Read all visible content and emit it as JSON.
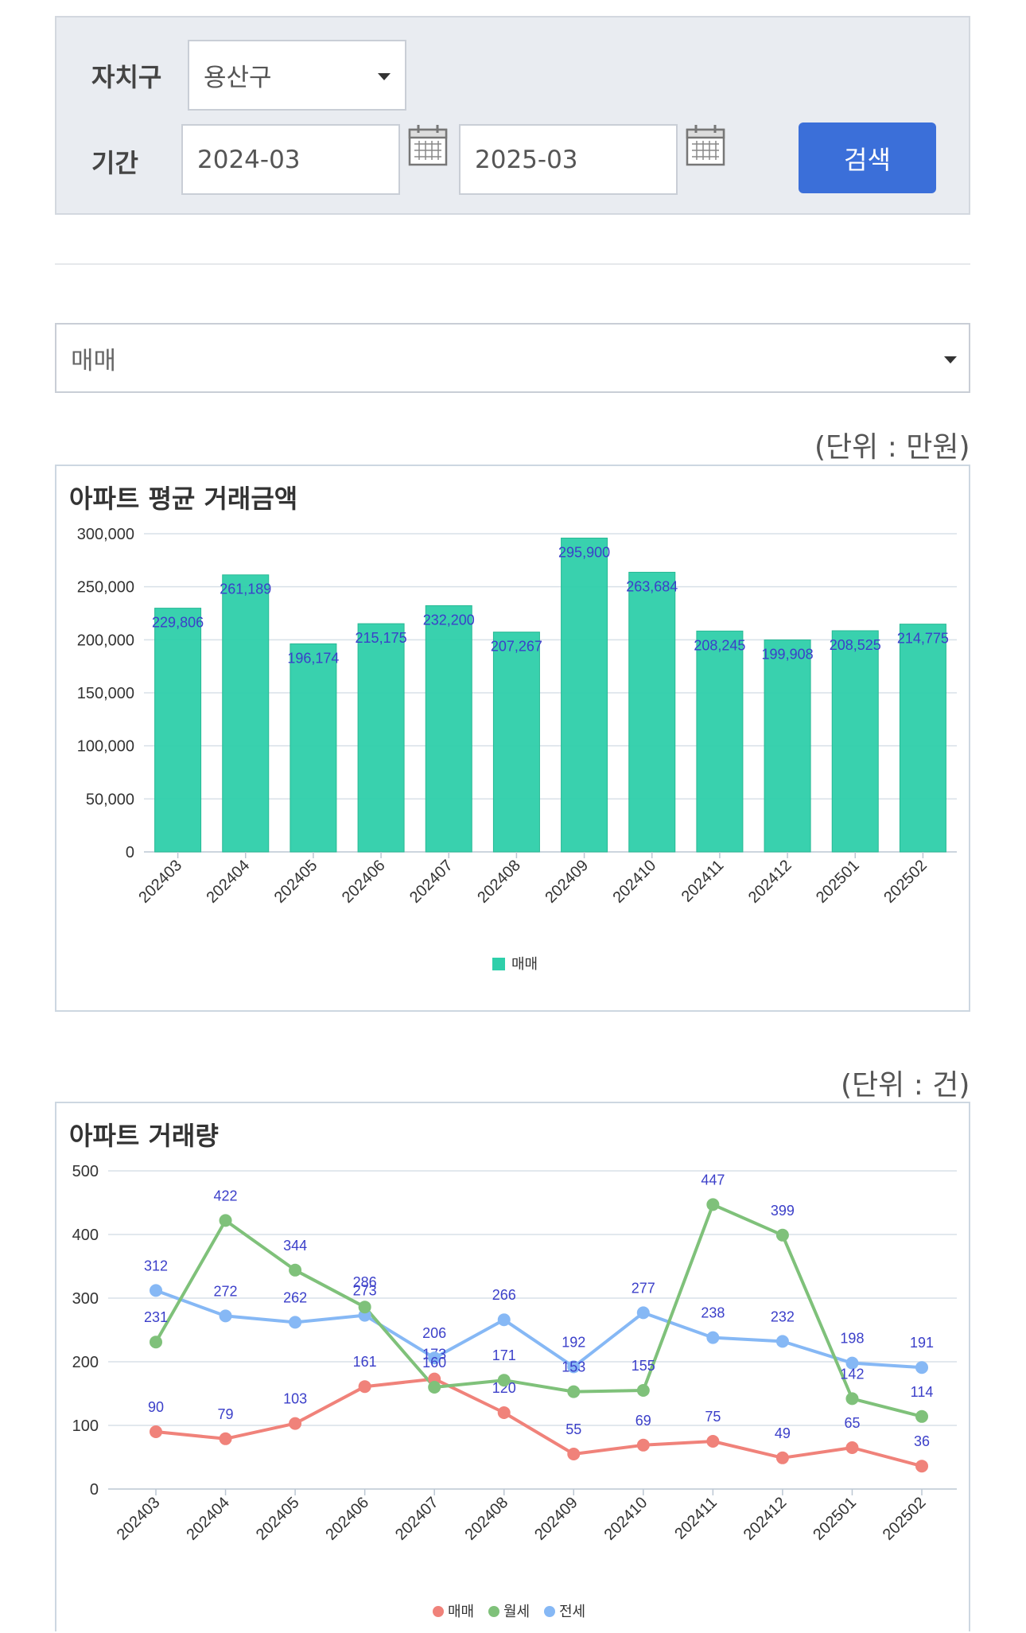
{
  "filter": {
    "district_label": "자치구",
    "district_value": "용산구",
    "period_label": "기간",
    "start_value": "2024-03",
    "end_value": "2025-03",
    "search_label": "검색"
  },
  "trade_type": {
    "selected": "매매"
  },
  "price_unit": "(단위 : 만원)",
  "volume_unit": "(단위 : 건)",
  "colors": {
    "bar": "#2ecfaa",
    "label": "#3b3fc9",
    "maemae": "#f0827a",
    "wolse": "#7fc17a",
    "jeonse": "#86b8f5"
  },
  "chart_data": [
    {
      "type": "bar",
      "title": "아파트 평균 거래금액",
      "categories": [
        "202403",
        "202404",
        "202405",
        "202406",
        "202407",
        "202408",
        "202409",
        "202410",
        "202411",
        "202412",
        "202501",
        "202502"
      ],
      "series": [
        {
          "name": "매매",
          "values": [
            229806,
            261189,
            196174,
            215175,
            232200,
            207267,
            295900,
            263684,
            208245,
            199908,
            208525,
            214775
          ]
        }
      ],
      "value_labels": [
        "229,806",
        "261,189",
        "196,174",
        "215,175",
        "232,200",
        "207,267",
        "295,900",
        "263,684",
        "208,245",
        "199,908",
        "208,525",
        "214,775"
      ],
      "yticks": [
        "0",
        "50,000",
        "100,000",
        "150,000",
        "200,000",
        "250,000",
        "300,000"
      ],
      "ylim": [
        0,
        300000
      ],
      "grid": true,
      "legend": "bottom-center"
    },
    {
      "type": "line",
      "title": "아파트 거래량",
      "categories": [
        "202403",
        "202404",
        "202405",
        "202406",
        "202407",
        "202408",
        "202409",
        "202410",
        "202411",
        "202412",
        "202501",
        "202502"
      ],
      "series": [
        {
          "name": "매매",
          "values": [
            90,
            79,
            103,
            161,
            173,
            120,
            55,
            69,
            75,
            49,
            65,
            36
          ]
        },
        {
          "name": "월세",
          "values": [
            231,
            422,
            344,
            286,
            160,
            171,
            153,
            155,
            447,
            399,
            142,
            114
          ]
        },
        {
          "name": "전세",
          "values": [
            312,
            272,
            262,
            273,
            206,
            266,
            192,
            277,
            238,
            232,
            198,
            191
          ]
        }
      ],
      "yticks": [
        "0",
        "100",
        "200",
        "300",
        "400",
        "500"
      ],
      "ylim": [
        0,
        500
      ],
      "grid": true,
      "legend": "bottom-center"
    }
  ]
}
